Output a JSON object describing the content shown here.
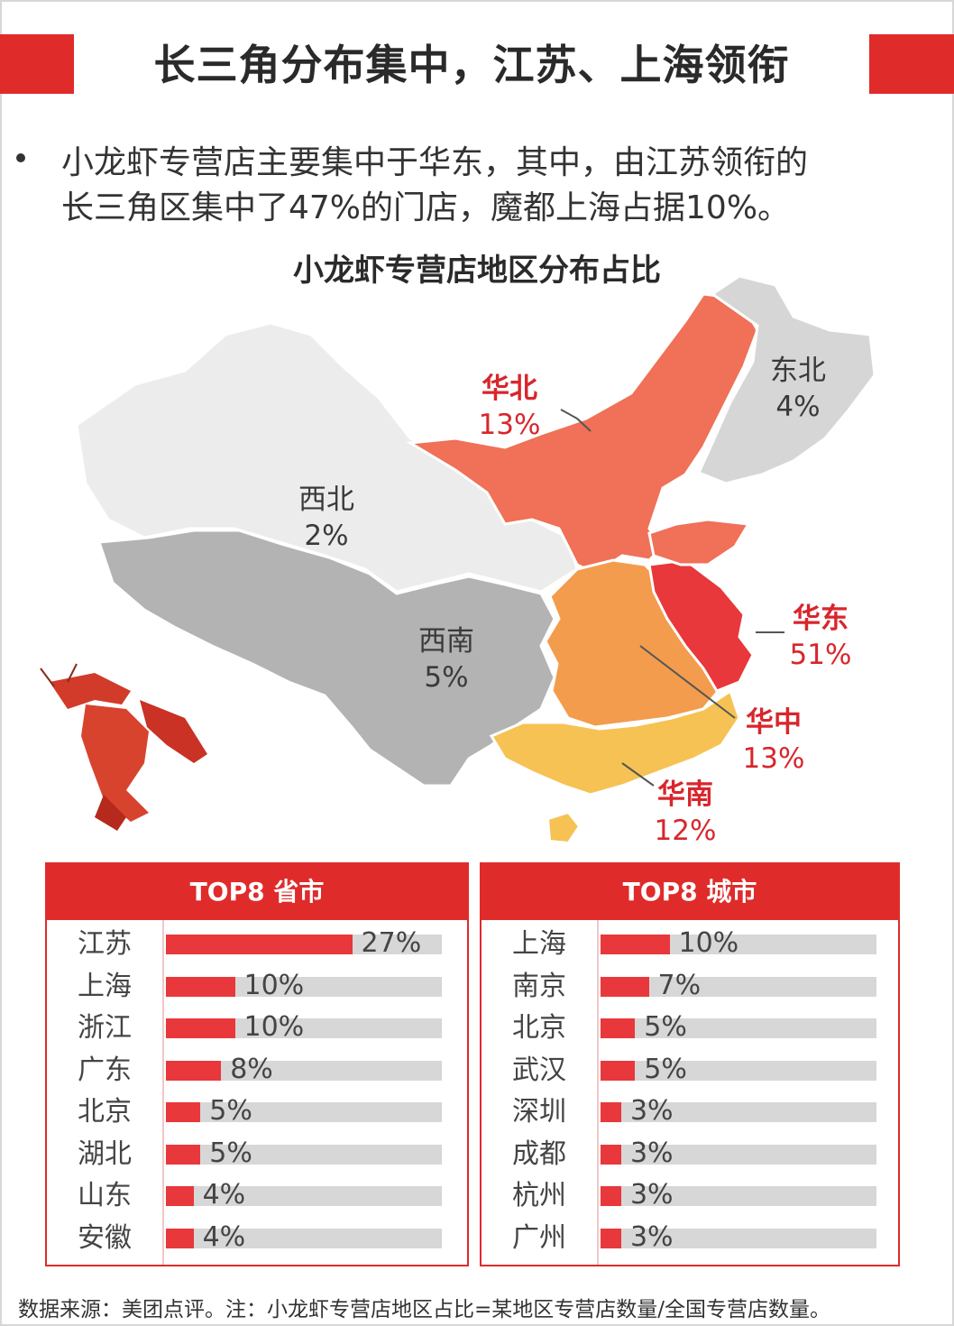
{
  "title": "长三角分布集中，江苏、上海领衔",
  "bullet": {
    "line1": "小龙虾专营店主要集中于华东，其中，由江苏领衔的",
    "line2": "长三角区集中了47%的门店，魔都上海占据10%。"
  },
  "chart_data": [
    {
      "type": "map",
      "title": "小龙虾专营店地区分布占比",
      "regions": [
        {
          "name": "华北",
          "value": 13,
          "label": "13%",
          "color": "#f07058",
          "highlight": true
        },
        {
          "name": "东北",
          "value": 4,
          "label": "4%",
          "color": "#d6d6d6",
          "highlight": false
        },
        {
          "name": "西北",
          "value": 2,
          "label": "2%",
          "color": "#ececec",
          "highlight": false
        },
        {
          "name": "西南",
          "value": 5,
          "label": "5%",
          "color": "#b3b3b4",
          "highlight": false
        },
        {
          "name": "华东",
          "value": 51,
          "label": "51%",
          "color": "#e8383b",
          "highlight": true
        },
        {
          "name": "华中",
          "value": 13,
          "label": "13%",
          "color": "#f39c4d",
          "highlight": true
        },
        {
          "name": "华南",
          "value": 12,
          "label": "12%",
          "color": "#f6c253",
          "highlight": true
        }
      ]
    },
    {
      "type": "bar",
      "title": "TOP8 省市",
      "categories": [
        "江苏",
        "上海",
        "浙江",
        "广东",
        "北京",
        "湖北",
        "山东",
        "安徽"
      ],
      "values": [
        27,
        10,
        10,
        8,
        5,
        5,
        4,
        4
      ],
      "labels": [
        "27%",
        "10%",
        "10%",
        "8%",
        "5%",
        "5%",
        "4%",
        "4%"
      ],
      "xlim": [
        0,
        40
      ]
    },
    {
      "type": "bar",
      "title": "TOP8 城市",
      "categories": [
        "上海",
        "南京",
        "北京",
        "武汉",
        "深圳",
        "成都",
        "杭州",
        "广州"
      ],
      "values": [
        10,
        7,
        5,
        5,
        3,
        3,
        3,
        3
      ],
      "labels": [
        "10%",
        "7%",
        "5%",
        "5%",
        "3%",
        "3%",
        "3%",
        "3%"
      ],
      "xlim": [
        0,
        40
      ]
    }
  ],
  "colors": {
    "accent": "#e02b2b",
    "bar": "#e8383b",
    "track": "#d7d7d7",
    "highlight_text": "#d8262c",
    "muted_text": "#3a3a3a"
  },
  "icons": {
    "lobster": "lobster-illustration"
  },
  "footnote": "数据来源：美团点评。注：小龙虾专营店地区占比=某地区专营店数量/全国专营店数量。"
}
